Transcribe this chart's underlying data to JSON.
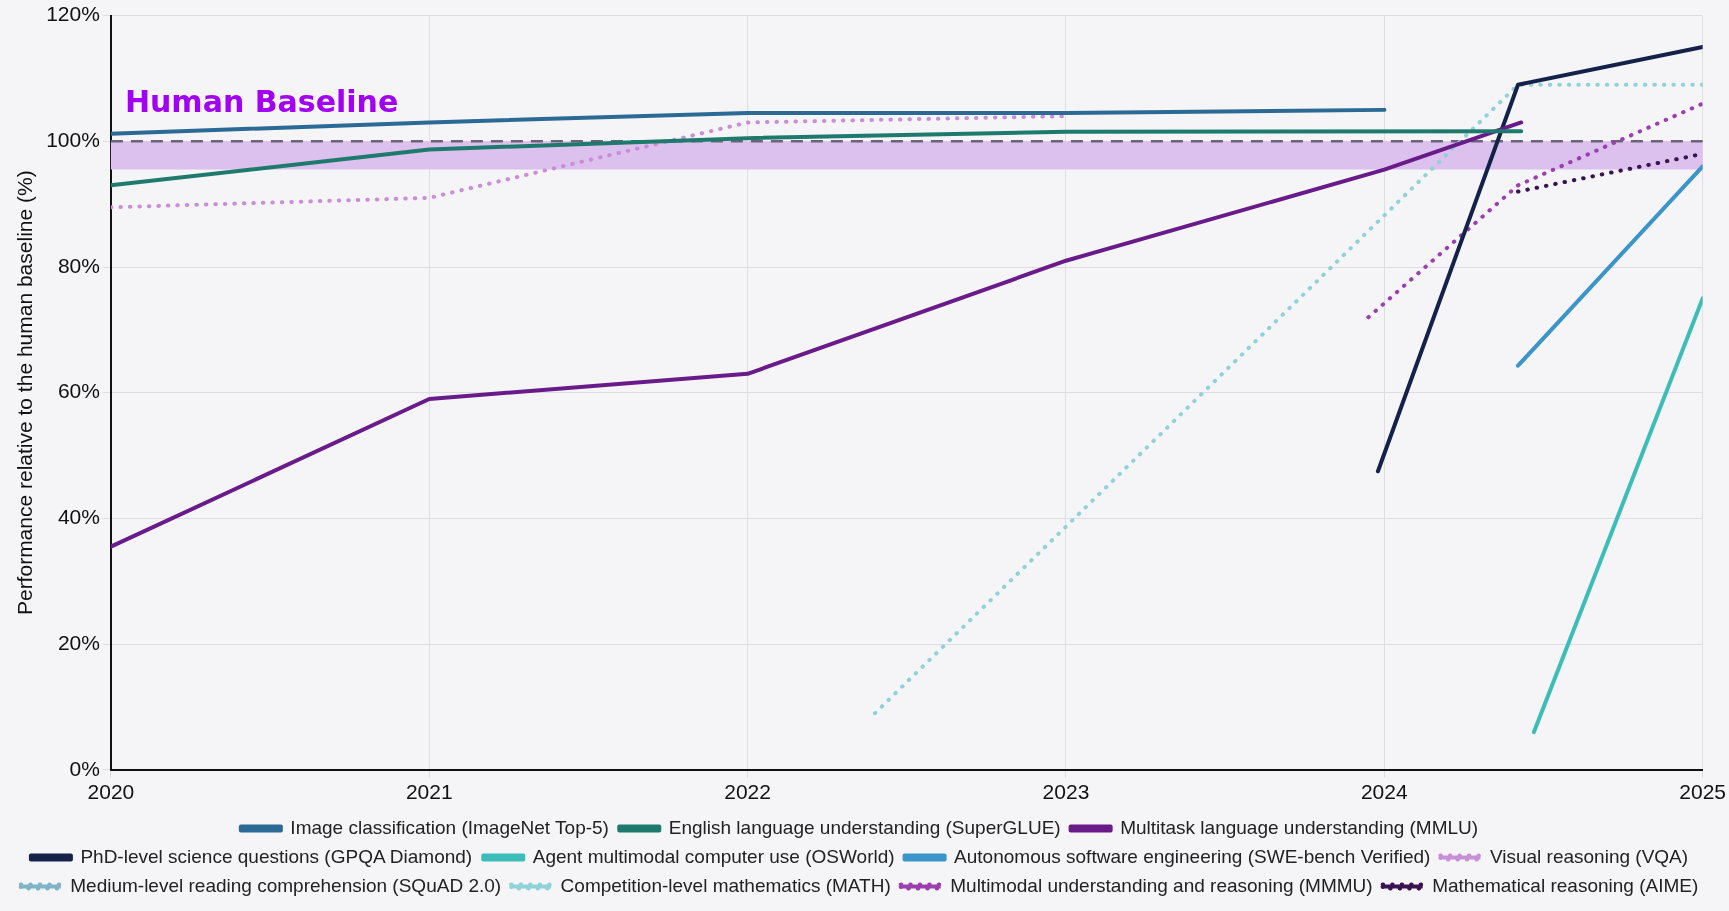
{
  "chart_data": {
    "type": "line",
    "ylabel": "Performance relative to the human baseline (%)",
    "xlim": [
      2020,
      2025
    ],
    "xticks": [
      2020,
      2021,
      2022,
      2023,
      2024,
      2025
    ],
    "ylim": [
      0,
      120
    ],
    "yticks": [
      {
        "value": 0,
        "label": "0%"
      },
      {
        "value": 20,
        "label": "20%"
      },
      {
        "value": 40,
        "label": "40%"
      },
      {
        "value": 60,
        "label": "60%"
      },
      {
        "value": 80,
        "label": "80%"
      },
      {
        "value": 100,
        "label": "100%"
      },
      {
        "value": 120,
        "label": "120%"
      }
    ],
    "grid": true,
    "legend": "bottom",
    "marker": "none",
    "ref_lines": [
      {
        "axis": "y",
        "value": 100,
        "label": "Human Baseline",
        "color": "#6b6478",
        "line_style": "dashed"
      }
    ],
    "bands": [
      {
        "axis": "y",
        "from": 95.5,
        "to": 100,
        "color": "#dcc0ee"
      }
    ],
    "series": [
      {
        "name": "Image classification (ImageNet Top-5)",
        "color": "#2a6a94",
        "line_style": "solid",
        "x": [
          2020,
          2021,
          2022,
          2023,
          2024
        ],
        "values": [
          101.2,
          103,
          104.5,
          104.5,
          105
        ]
      },
      {
        "name": "English language understanding (SuperGLUE)",
        "color": "#1f7a6e",
        "line_style": "solid",
        "x": [
          2020,
          2021,
          2022,
          2023,
          2024.43
        ],
        "values": [
          93,
          98.7,
          100.5,
          101.5,
          101.6
        ]
      },
      {
        "name": "Multitask language understanding (MMLU)",
        "color": "#6a1b8a",
        "line_style": "solid",
        "x": [
          2020,
          2021,
          2022,
          2023,
          2024,
          2024.43
        ],
        "values": [
          35.5,
          59,
          63,
          81,
          95.5,
          103
        ]
      },
      {
        "name": "PhD-level science questions (GPQA Diamond)",
        "color": "#14224a",
        "line_style": "solid",
        "x": [
          2023.98,
          2024.42,
          2025
        ],
        "values": [
          47.5,
          109,
          115
        ]
      },
      {
        "name": "Agent multimodal computer use (OSWorld)",
        "color": "#3dbdb8",
        "line_style": "solid",
        "x": [
          2024.47,
          2025
        ],
        "values": [
          6,
          75
        ]
      },
      {
        "name": "Autonomous software engineering (SWE-bench Verified)",
        "color": "#3b95c8",
        "line_style": "solid",
        "x": [
          2024.42,
          2025
        ],
        "values": [
          64.3,
          96
        ]
      },
      {
        "name": "Visual reasoning (VQA)",
        "color": "#c98fd6",
        "line_style": "dotted",
        "x": [
          2020,
          2021,
          2022,
          2023
        ],
        "values": [
          89.5,
          91,
          103,
          104
        ]
      },
      {
        "name": "Medium-level reading comprehension (SQuAD 2.0)",
        "color": "#7fb3c8",
        "line_style": "dotted"
      },
      {
        "name": "Competition-level mathematics (MATH)",
        "color": "#8fd3d8",
        "line_style": "dotted",
        "x": [
          2022.4,
          2024.42,
          2025
        ],
        "values": [
          9,
          109,
          109
        ]
      },
      {
        "name": "Multimodal understanding and reasoning (MMMU)",
        "color": "#9b3fb0",
        "line_style": "dotted",
        "x": [
          2023.95,
          2024.42,
          2025
        ],
        "values": [
          72,
          93,
          106
        ]
      },
      {
        "name": "Mathematical reasoning (AIME)",
        "color": "#3a1450",
        "line_style": "dotted",
        "x": [
          2024.42,
          2025
        ],
        "values": [
          92,
          98
        ]
      }
    ]
  }
}
